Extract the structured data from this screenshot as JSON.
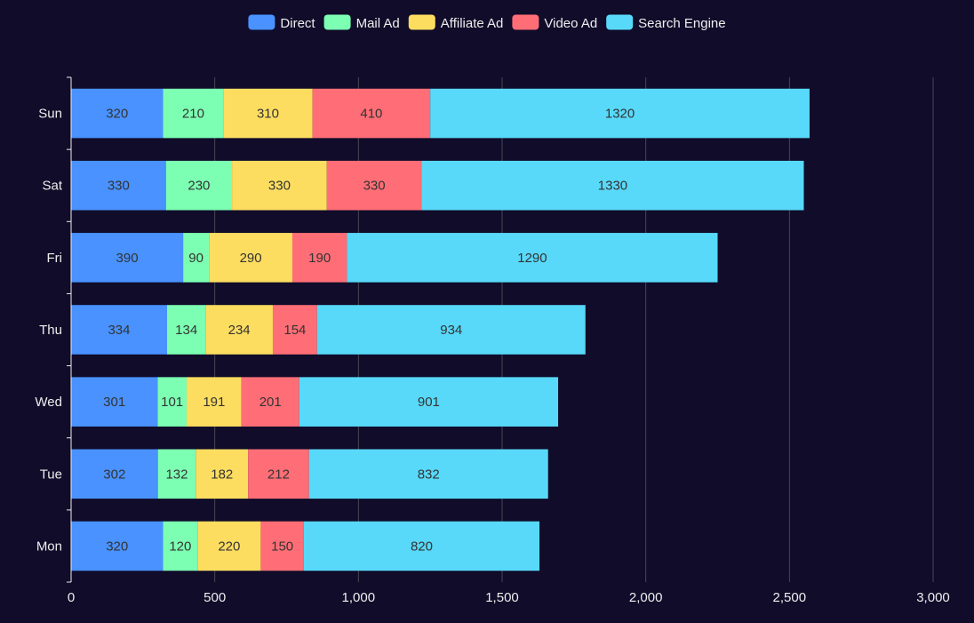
{
  "chart_data": {
    "type": "bar",
    "orientation": "horizontal",
    "stacked": true,
    "categories": [
      "Mon",
      "Tue",
      "Wed",
      "Thu",
      "Fri",
      "Sat",
      "Sun"
    ],
    "series": [
      {
        "name": "Direct",
        "color": "#4992ff",
        "values": [
          320,
          302,
          301,
          334,
          390,
          330,
          320
        ]
      },
      {
        "name": "Mail Ad",
        "color": "#7cffb2",
        "values": [
          120,
          132,
          101,
          134,
          90,
          230,
          210
        ]
      },
      {
        "name": "Affiliate Ad",
        "color": "#fddd60",
        "values": [
          220,
          182,
          191,
          234,
          290,
          330,
          310
        ]
      },
      {
        "name": "Video Ad",
        "color": "#ff6e76",
        "values": [
          150,
          212,
          201,
          154,
          190,
          330,
          410
        ]
      },
      {
        "name": "Search Engine",
        "color": "#58d9f9",
        "values": [
          820,
          832,
          901,
          934,
          1290,
          1330,
          1320
        ]
      }
    ],
    "xlim": [
      0,
      3000
    ],
    "xticks": [
      "0",
      "500",
      "1,000",
      "1,500",
      "2,000",
      "2,500",
      "3,000"
    ],
    "grid": true,
    "legend_position": "top-center",
    "show_data_labels": true,
    "background": "#100c2a"
  }
}
